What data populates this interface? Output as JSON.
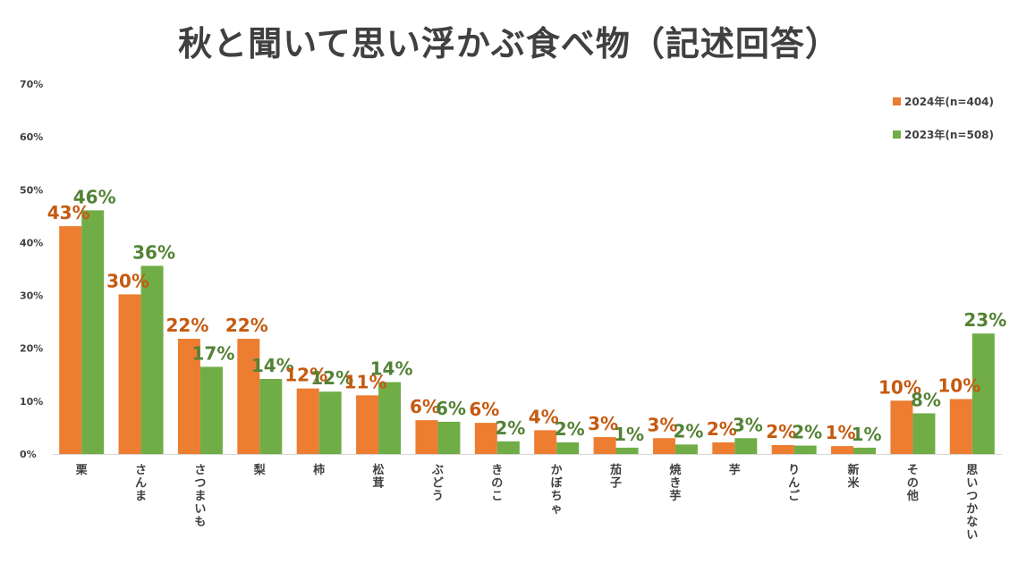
{
  "title": "秋と聞いて思い浮かぶ食べ物（記述回答）",
  "colors": {
    "s2024": "#ED7D31",
    "s2023": "#70AD47",
    "label2024": "#C55A11",
    "label2023": "#548235"
  },
  "chart_data": {
    "type": "bar",
    "title": "秋と聞いて思い浮かぶ食べ物（記述回答）",
    "categories": [
      "栗",
      "さんま",
      "さつまいも",
      "梨",
      "柿",
      "松茸",
      "ぶどう",
      "きのこ",
      "かぼちゃ",
      "茄子",
      "焼き芋",
      "芋",
      "りんご",
      "新米",
      "その他",
      "思いつかない"
    ],
    "series": [
      {
        "name": "2024年(n=404)",
        "values": [
          43.1,
          30.2,
          21.8,
          21.8,
          12.4,
          11.1,
          6.4,
          5.9,
          4.5,
          3.2,
          3.0,
          2.2,
          1.7,
          1.5,
          10.1,
          10.4
        ]
      },
      {
        "name": "2023年(n=508)",
        "values": [
          46.1,
          35.6,
          16.5,
          14.2,
          11.8,
          13.6,
          6.1,
          2.4,
          2.2,
          1.2,
          1.8,
          3.0,
          1.6,
          1.2,
          7.7,
          22.8
        ]
      }
    ],
    "data_labels": [
      [
        "43%",
        "30%",
        "22%",
        "22%",
        "12%",
        "11%",
        "6%",
        "6%",
        "4%",
        "3%",
        "3%",
        "2%",
        "2%",
        "1%",
        "10%",
        "10%"
      ],
      [
        "46%",
        "36%",
        "17%",
        "14%",
        "12%",
        "14%",
        "6%",
        "2%",
        "2%",
        "1%",
        "2%",
        "3%",
        "2%",
        "1%",
        "8%",
        "23%"
      ]
    ],
    "ylim": [
      0,
      70
    ],
    "yticks": [
      "0%",
      "10%",
      "20%",
      "30%",
      "40%",
      "50%",
      "60%",
      "70%"
    ],
    "legend_position": "top-right",
    "grid": false
  }
}
